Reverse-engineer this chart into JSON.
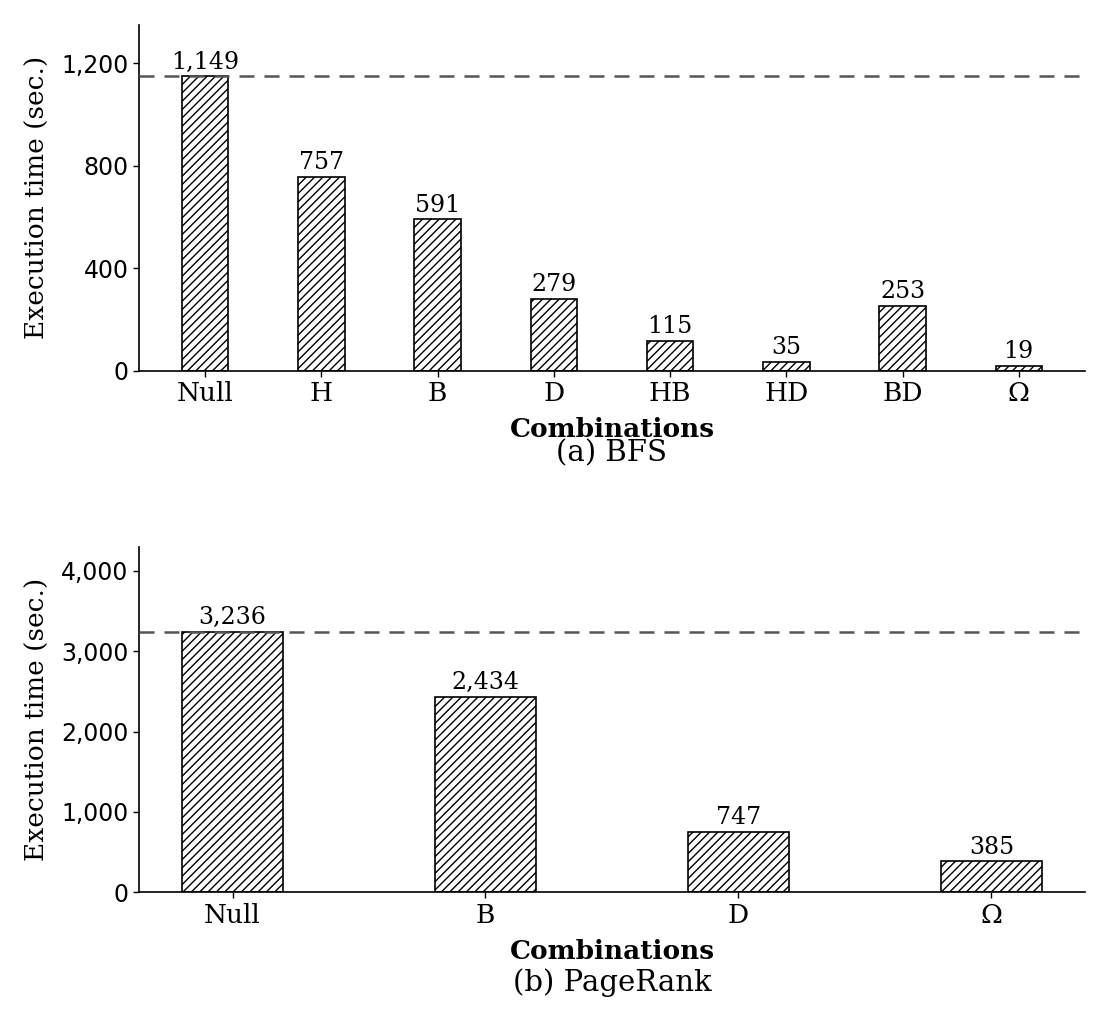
{
  "bfs": {
    "categories": [
      "Null",
      "H",
      "B",
      "D",
      "HB",
      "HD",
      "BD",
      "Ω"
    ],
    "values": [
      1149,
      757,
      591,
      279,
      115,
      35,
      253,
      19
    ],
    "ylim": [
      0,
      1350
    ],
    "yticks": [
      0,
      400,
      800,
      1200
    ],
    "dashed_line_y": 1149,
    "xlabel": "Combinations",
    "ylabel": "Execution time (sec.)",
    "subtitle": "(a) BFS"
  },
  "pagerank": {
    "categories": [
      "Null",
      "B",
      "D",
      "Ω"
    ],
    "values": [
      3236,
      2434,
      747,
      385
    ],
    "ylim": [
      0,
      4300
    ],
    "yticks": [
      0,
      1000,
      2000,
      3000,
      4000
    ],
    "dashed_line_y": 3236,
    "xlabel": "Combinations",
    "ylabel": "Execution time (sec.)",
    "subtitle": "(b) PageRank"
  },
  "bar_color": "#ffffff",
  "bar_edgecolor": "#000000",
  "hatch_pattern": "////",
  "bar_width": 0.4,
  "label_fontsize": 19,
  "tick_fontsize": 17,
  "subtitle_fontsize": 21,
  "value_fontsize": 17,
  "background_color": "#ffffff"
}
